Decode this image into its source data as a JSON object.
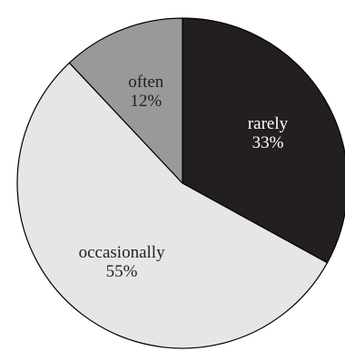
{
  "chart_data": {
    "type": "pie",
    "start_angle_deg": 0,
    "direction": "clockwise",
    "slices": [
      {
        "label": "rarely",
        "percent_label": "33%",
        "value": 33,
        "color": "#231f20",
        "text_color": "#ffffff"
      },
      {
        "label": "occasionally",
        "percent_label": "55%",
        "value": 55,
        "color": "#e6e6e6",
        "text_color": "#231f20"
      },
      {
        "label": "often",
        "percent_label": "12%",
        "value": 12,
        "color": "#999999",
        "text_color": "#231f20"
      }
    ]
  }
}
